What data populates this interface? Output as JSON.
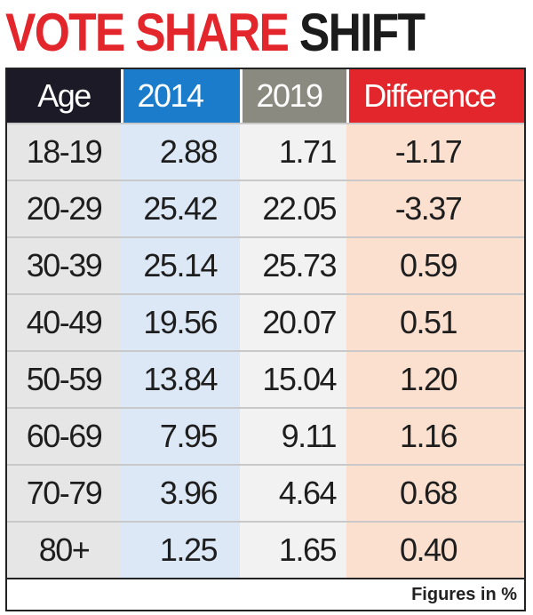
{
  "header": {
    "title": [
      "VOTE SHARE",
      "SHIFT"
    ]
  },
  "table": {
    "columns": [
      "Age",
      "2014",
      "2019",
      "Difference"
    ],
    "rows": [
      [
        "18-19",
        "2.88",
        "1.71",
        "-1.17"
      ],
      [
        "20-29",
        "25.42",
        "22.05",
        "-3.37"
      ],
      [
        "30-39",
        "25.14",
        "25.73",
        "0.59"
      ],
      [
        "40-49",
        "19.56",
        "20.07",
        "0.51"
      ],
      [
        "50-59",
        "13.84",
        "15.04",
        "1.20"
      ],
      [
        "60-69",
        "7.95",
        "9.11",
        "1.16"
      ],
      [
        "70-79",
        "3.96",
        "4.64",
        "0.68"
      ],
      [
        "80+",
        "1.25",
        "1.65",
        "0.40"
      ]
    ]
  },
  "footer": {
    "note": "Figures in %"
  }
}
